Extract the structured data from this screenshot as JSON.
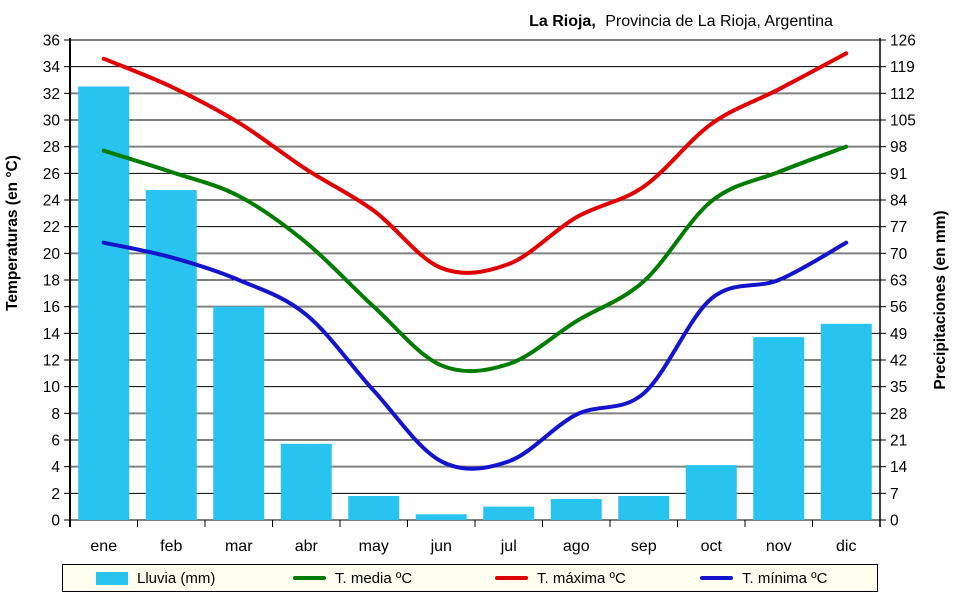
{
  "title": {
    "bold": "La Rioja,",
    "rest": "Provincia de La Rioja, Argentina"
  },
  "axes": {
    "left_title": "Temperaturas (en °C)",
    "right_title": "Precipitaciones (en mm)"
  },
  "legend": {
    "items": [
      {
        "label": "Lluvia (mm)",
        "type": "bar",
        "color": "#29C3F0"
      },
      {
        "label": "T. media ºC",
        "type": "line",
        "color": "#007D00"
      },
      {
        "label": "T. máxima ºC",
        "type": "line",
        "color": "#E00000"
      },
      {
        "label": "T. mínima ºC",
        "type": "line",
        "color": "#1414CC"
      }
    ],
    "background": "#FFFFF0"
  },
  "chart_data": {
    "type": "bar+line",
    "title": "La Rioja, Provincia de La Rioja, Argentina",
    "categories": [
      "ene",
      "feb",
      "mar",
      "abr",
      "may",
      "jun",
      "jul",
      "ago",
      "sep",
      "oct",
      "nov",
      "dic"
    ],
    "bar_series": {
      "name": "Lluvia (mm)",
      "axis": "right",
      "color": "#29C3F0",
      "values_mm": [
        113.8,
        86.6,
        56.0,
        20.0,
        6.3,
        1.5,
        3.5,
        5.5,
        6.3,
        14.4,
        48.0,
        51.5
      ]
    },
    "line_series": [
      {
        "name": "T. media ºC",
        "color": "#007D00",
        "values": [
          27.7,
          26.1,
          24.3,
          20.8,
          16.0,
          11.6,
          11.7,
          14.9,
          17.9,
          23.9,
          26.1,
          28.0
        ]
      },
      {
        "name": "T. máxima ºC",
        "color": "#E00000",
        "values": [
          34.6,
          32.5,
          29.8,
          26.3,
          23.2,
          18.9,
          19.2,
          22.7,
          25.0,
          29.7,
          32.3,
          35.0
        ]
      },
      {
        "name": "T. mínima ºC",
        "color": "#1414CC",
        "values": [
          20.8,
          19.7,
          18.0,
          15.4,
          9.7,
          4.4,
          4.4,
          7.9,
          9.5,
          16.6,
          18.0,
          20.8
        ]
      }
    ],
    "ylabel_left": "Temperaturas (en °C)",
    "ylabel_right": "Precipitaciones (en mm)",
    "ylim_left": [
      0,
      36
    ],
    "ylim_right": [
      0,
      126
    ],
    "left_ticks": [
      36,
      34,
      32,
      30,
      28,
      26,
      24,
      22,
      20,
      18,
      16,
      14,
      12,
      10,
      8,
      6,
      4,
      2,
      0
    ],
    "right_ticks": [
      126,
      119,
      112,
      105,
      98,
      91,
      84,
      77,
      70,
      63,
      56,
      49,
      42,
      35,
      28,
      21,
      14,
      7,
      0
    ],
    "mm_per_degree": 3.5,
    "grid": true,
    "legend_position": "bottom"
  }
}
